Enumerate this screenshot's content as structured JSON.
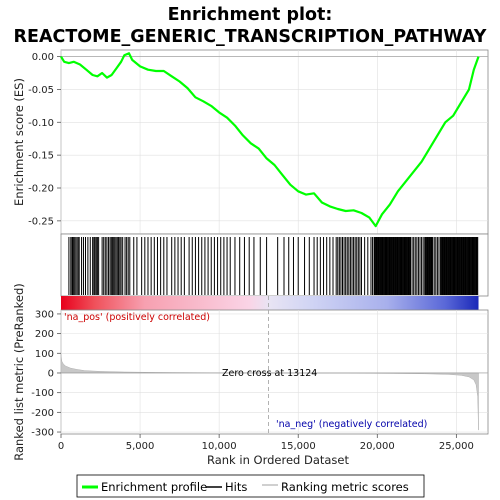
{
  "chart_data": {
    "type": "line",
    "title_line1": "Enrichment plot:",
    "title_line2": "REACTOME_GENERIC_TRANSCRIPTION_PATHWAY",
    "es_ylabel": "Enrichment score (ES)",
    "metric_ylabel": "Ranked list metric (PreRanked)",
    "xlabel": "Rank in Ordered Dataset",
    "x_ticks": [
      0,
      5000,
      10000,
      15000,
      20000,
      25000
    ],
    "x_tick_labels": [
      "0",
      "5,000",
      "10,000",
      "15,000",
      "20,000",
      "25,000"
    ],
    "xlim": [
      0,
      27000
    ],
    "n_genes": 26400,
    "es_ylim": [
      -0.27,
      0.01
    ],
    "es_ticks": [
      0.0,
      -0.05,
      -0.1,
      -0.15,
      -0.2,
      -0.25
    ],
    "es_tick_labels": [
      "0.00",
      "-0.05",
      "-0.10",
      "-0.15",
      "-0.20",
      "-0.25"
    ],
    "metric_ylim": [
      -310,
      320
    ],
    "metric_ticks": [
      300,
      200,
      100,
      0,
      -100,
      -200,
      -300
    ],
    "metric_tick_labels": [
      "300",
      "200",
      "100",
      "0",
      "-100",
      "-200",
      "-300"
    ],
    "zero_cross": 13124,
    "zero_cross_label": "Zero cross at 13124",
    "pos_label": "'na_pos' (positively correlated)",
    "neg_label": "'na_neg' (negatively correlated)",
    "es_curve": [
      [
        0,
        0.0
      ],
      [
        200,
        -0.008
      ],
      [
        500,
        -0.01
      ],
      [
        800,
        -0.008
      ],
      [
        1200,
        -0.012
      ],
      [
        1600,
        -0.02
      ],
      [
        2000,
        -0.028
      ],
      [
        2300,
        -0.03
      ],
      [
        2600,
        -0.025
      ],
      [
        2900,
        -0.032
      ],
      [
        3200,
        -0.028
      ],
      [
        3500,
        -0.018
      ],
      [
        3800,
        -0.008
      ],
      [
        4000,
        0.002
      ],
      [
        4300,
        0.005
      ],
      [
        4500,
        -0.005
      ],
      [
        5000,
        -0.015
      ],
      [
        5500,
        -0.02
      ],
      [
        6000,
        -0.022
      ],
      [
        6500,
        -0.022
      ],
      [
        7000,
        -0.03
      ],
      [
        7500,
        -0.038
      ],
      [
        8000,
        -0.048
      ],
      [
        8500,
        -0.062
      ],
      [
        9000,
        -0.068
      ],
      [
        9500,
        -0.075
      ],
      [
        10000,
        -0.085
      ],
      [
        10500,
        -0.093
      ],
      [
        11000,
        -0.105
      ],
      [
        11500,
        -0.12
      ],
      [
        12000,
        -0.132
      ],
      [
        12500,
        -0.14
      ],
      [
        13000,
        -0.155
      ],
      [
        13500,
        -0.165
      ],
      [
        14000,
        -0.18
      ],
      [
        14500,
        -0.195
      ],
      [
        15000,
        -0.205
      ],
      [
        15500,
        -0.21
      ],
      [
        16000,
        -0.208
      ],
      [
        16500,
        -0.222
      ],
      [
        17000,
        -0.228
      ],
      [
        17500,
        -0.232
      ],
      [
        18000,
        -0.235
      ],
      [
        18500,
        -0.234
      ],
      [
        19000,
        -0.238
      ],
      [
        19500,
        -0.245
      ],
      [
        19900,
        -0.258
      ],
      [
        20300,
        -0.24
      ],
      [
        20800,
        -0.225
      ],
      [
        21300,
        -0.205
      ],
      [
        21800,
        -0.19
      ],
      [
        22300,
        -0.175
      ],
      [
        22800,
        -0.16
      ],
      [
        23300,
        -0.14
      ],
      [
        23800,
        -0.12
      ],
      [
        24300,
        -0.1
      ],
      [
        24800,
        -0.09
      ],
      [
        25300,
        -0.07
      ],
      [
        25800,
        -0.05
      ],
      [
        26100,
        -0.02
      ],
      [
        26400,
        0.0
      ]
    ],
    "hit_ranks": [
      500,
      620,
      700,
      760,
      830,
      900,
      1000,
      1080,
      1150,
      1300,
      1420,
      1550,
      1700,
      1850,
      2000,
      2080,
      2150,
      2230,
      2300,
      2380,
      2600,
      2700,
      2800,
      2900,
      3000,
      3100,
      3180,
      3250,
      3330,
      3400,
      3480,
      3560,
      3640,
      3720,
      3800,
      3900,
      4050,
      4150,
      4250,
      4350,
      4600,
      4800,
      5100,
      5300,
      5500,
      5700,
      5900,
      6100,
      6300,
      6500,
      6700,
      7000,
      7200,
      7400,
      7600,
      7800,
      8100,
      8300,
      8500,
      8700,
      8900,
      9100,
      9300,
      9500,
      9700,
      9900,
      10100,
      10300,
      10500,
      10700,
      11000,
      11300,
      11600,
      11900,
      12200,
      12600,
      13000,
      13700,
      14100,
      14400,
      14700,
      15000,
      15400,
      15700,
      16000,
      16200,
      16400,
      16600,
      16800,
      17000,
      17200,
      17400,
      17500,
      17600,
      17700,
      17800,
      17900,
      18000,
      18100,
      18200,
      18300,
      18400,
      18500,
      18600,
      18700,
      18800,
      18900,
      19000,
      19200,
      19400,
      19600,
      19700,
      19800,
      19850,
      19900,
      19950,
      20000,
      20050,
      20100,
      20150,
      20200,
      20250,
      20300,
      20350,
      20400,
      20450,
      20500,
      20550,
      20600,
      20650,
      20700,
      20750,
      20800,
      20850,
      20900,
      20950,
      21000,
      21050,
      21100,
      21150,
      21200,
      21250,
      21300,
      21350,
      21400,
      21450,
      21500,
      21550,
      21600,
      21650,
      21700,
      21750,
      21800,
      21850,
      21900,
      21950,
      22000,
      22050,
      22100,
      22200,
      22300,
      22400,
      22500,
      22600,
      22700,
      22800,
      22900,
      23000,
      23050,
      23100,
      23150,
      23200,
      23250,
      23300,
      23350,
      23400,
      23450,
      23500,
      23600,
      23700,
      23800,
      23900,
      24000,
      24050,
      24100,
      24150,
      24200,
      24250,
      24300,
      24350,
      24400,
      24450,
      24500,
      24550,
      24600,
      24650,
      24700,
      24750,
      24800,
      24850,
      24900,
      24950,
      25000,
      25050,
      25100,
      25150,
      25200,
      25250,
      25300,
      25350,
      25400,
      25450,
      25500,
      25550,
      25600,
      25650,
      25700,
      25750,
      25800,
      25850,
      25900,
      25950,
      26000,
      26050,
      26100,
      26150,
      26200,
      26250,
      26300,
      26350
    ],
    "metric_curve": [
      [
        0,
        95
      ],
      [
        50,
        60
      ],
      [
        150,
        45
      ],
      [
        300,
        35
      ],
      [
        600,
        25
      ],
      [
        1000,
        18
      ],
      [
        1500,
        12
      ],
      [
        2500,
        8
      ],
      [
        4000,
        5
      ],
      [
        6000,
        3
      ],
      [
        8000,
        2
      ],
      [
        10000,
        1
      ],
      [
        12000,
        0.5
      ],
      [
        13124,
        0
      ],
      [
        15000,
        -0.5
      ],
      [
        17000,
        -1
      ],
      [
        19000,
        -1.5
      ],
      [
        21000,
        -2.5
      ],
      [
        23000,
        -4
      ],
      [
        24500,
        -7
      ],
      [
        25300,
        -12
      ],
      [
        25800,
        -20
      ],
      [
        26100,
        -35
      ],
      [
        26250,
        -60
      ],
      [
        26350,
        -120
      ],
      [
        26400,
        -290
      ]
    ],
    "legend": [
      {
        "label": "Enrichment profile",
        "color": "#00ff00"
      },
      {
        "label": "Hits",
        "color": "#000000"
      },
      {
        "label": "Ranking metric scores",
        "color": "#c0c0c0"
      }
    ],
    "colors": {
      "es_line": "#00ff00",
      "hits": "#000000",
      "metric_fill": "#c8c8c8",
      "pos_text": "#cc0000",
      "neg_text": "#0000aa",
      "grid": "#e0e0e0"
    }
  }
}
